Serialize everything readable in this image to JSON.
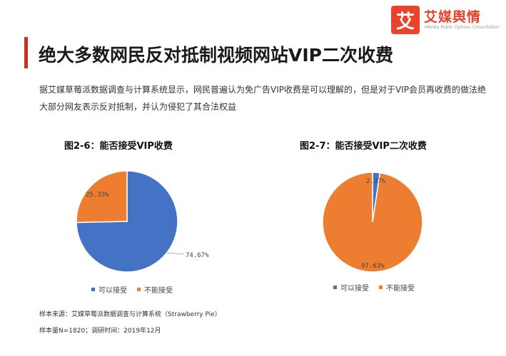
{
  "brand": {
    "name": "艾媒舆情",
    "subtitle": "iiMedia Public Opinion Consultation",
    "mark": "艾"
  },
  "title": "绝大多数网民反对抵制视频网站VIP二次收费",
  "description": "据艾媒草莓派数据调查与计算系统显示，网民普遍认为免广告VIP收费是可以理解的，但是对于VIP会员再收费的做法绝大部分网友表示反对抵制，并认为侵犯了其合法权益",
  "chart_data": [
    {
      "type": "pie",
      "title": "图2-6：能否接受VIP收费",
      "categories": [
        "可以接受",
        "不能接受"
      ],
      "values": [
        74.67,
        25.33
      ],
      "labels": [
        "74.67%",
        "25.33%"
      ],
      "colors": [
        "#4472c4",
        "#ed7d31"
      ],
      "legend": "bottom"
    },
    {
      "type": "pie",
      "title": "图2-7：能否接受VIP二次收费",
      "categories": [
        "可以接受",
        "不能接受"
      ],
      "values": [
        2.37,
        97.63
      ],
      "labels": [
        "2.37%",
        "97.63%"
      ],
      "colors": [
        "#4472c4",
        "#ed7d31"
      ],
      "legend": "bottom"
    }
  ],
  "footer": {
    "source": "样本来源：艾媒草莓派数据调查与计算系统（Strawberry Pie）",
    "sample": "样本量N=1820；调研时间：2019年12月"
  }
}
